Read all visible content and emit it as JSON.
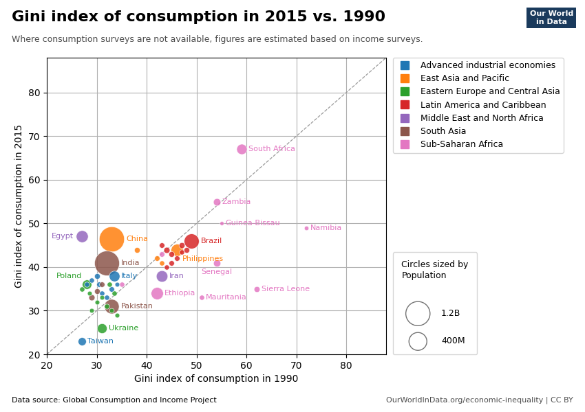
{
  "chart_data": {
    "type": "scatter",
    "title": "Gini index of consumption in 2015 vs. 1990",
    "subtitle": "Where consumption surveys are not available, figures are estimated based on income surveys.",
    "xlabel": "Gini index of consumption in 1990",
    "ylabel": "Gini index of consumption in 2015",
    "source_label": "Data source: ",
    "source": "Global Consumption and Income Project",
    "footer_right": "OurWorldInData.org/economic-inequality | CC BY",
    "logo": [
      "Our World",
      "in Data"
    ],
    "xlim": [
      20,
      88
    ],
    "ylim": [
      20,
      88
    ],
    "xticks": [
      20,
      30,
      40,
      50,
      60,
      70,
      80
    ],
    "yticks": [
      20,
      30,
      40,
      50,
      60,
      70,
      80
    ],
    "grid": true,
    "series": [
      {
        "name": "Advanced industrial economies",
        "x": [
          33.5,
          27,
          30.5,
          31,
          32,
          33,
          29,
          30,
          28,
          34
        ],
        "y": [
          38,
          23,
          36,
          34,
          33,
          35,
          37,
          38,
          36,
          36
        ],
        "population": [
          60,
          23,
          5,
          4,
          4,
          5,
          4,
          6,
          4,
          3
        ],
        "labels": [
          "Italy",
          "Taiwan",
          null,
          null,
          null,
          null,
          null,
          null,
          null,
          null
        ]
      },
      {
        "name": "East Asia and Pacific",
        "x": [
          33,
          46,
          38,
          42,
          43
        ],
        "y": [
          46.5,
          44,
          44,
          42,
          41
        ],
        "population": [
          1370,
          101,
          6,
          5,
          4
        ],
        "labels": [
          "China",
          "Philippines",
          null,
          null,
          null
        ]
      },
      {
        "name": "Eastern Europe and Central Asia",
        "x": [
          28,
          31,
          27,
          28.5,
          30,
          31,
          32,
          29,
          33,
          34,
          32.5,
          33.5
        ],
        "y": [
          36,
          26,
          35,
          34,
          32,
          33,
          31,
          30,
          30,
          29,
          36,
          34
        ],
        "population": [
          38,
          45,
          4,
          3,
          3,
          3,
          4,
          3,
          3,
          3,
          4,
          4
        ],
        "labels": [
          "Poland",
          "Ukraine",
          null,
          null,
          null,
          null,
          null,
          null,
          null,
          null,
          null,
          null
        ]
      },
      {
        "name": "Latin America and Caribbean",
        "x": [
          49,
          44,
          45,
          46,
          47,
          43,
          48,
          47,
          45,
          44
        ],
        "y": [
          46,
          44,
          43,
          42,
          45,
          45,
          44,
          43.5,
          41,
          40
        ],
        "population": [
          208,
          8,
          6,
          5,
          7,
          5,
          6,
          4,
          5,
          4
        ],
        "labels": [
          "Brazil",
          null,
          null,
          null,
          null,
          null,
          null,
          null,
          null,
          null
        ]
      },
      {
        "name": "Middle East and North Africa",
        "x": [
          27,
          43
        ],
        "y": [
          47,
          38
        ],
        "population": [
          92,
          79
        ],
        "labels": [
          "Egypt",
          "Iran"
        ]
      },
      {
        "name": "South Asia",
        "x": [
          32,
          33,
          29,
          30,
          31
        ],
        "y": [
          41,
          31,
          33,
          34.5,
          36
        ],
        "population": [
          1310,
          189,
          8,
          6,
          5
        ],
        "labels": [
          "India",
          "Pakistan",
          null,
          null,
          null
        ]
      },
      {
        "name": "Sub-Saharan Africa",
        "x": [
          42,
          59,
          54,
          55,
          72,
          54,
          62,
          51,
          35,
          43
        ],
        "y": [
          34,
          67,
          55,
          50,
          49,
          41,
          35,
          33,
          36,
          43
        ],
        "population": [
          100,
          55,
          16,
          1.8,
          2.5,
          15,
          7,
          4,
          4,
          5
        ],
        "labels": [
          "Ethiopia",
          "South Africa",
          "Zambia",
          "Guinea-Bissau",
          "Namibia",
          "Senegal",
          "Sierra Leone",
          "Mauritania",
          null,
          null
        ]
      }
    ],
    "size_legend": [
      {
        "value": 1200,
        "label": "1.2B"
      },
      {
        "value": 400,
        "label": "400M"
      }
    ],
    "size_legend_caption": "Circles sized by",
    "size_legend_title": "Population"
  }
}
